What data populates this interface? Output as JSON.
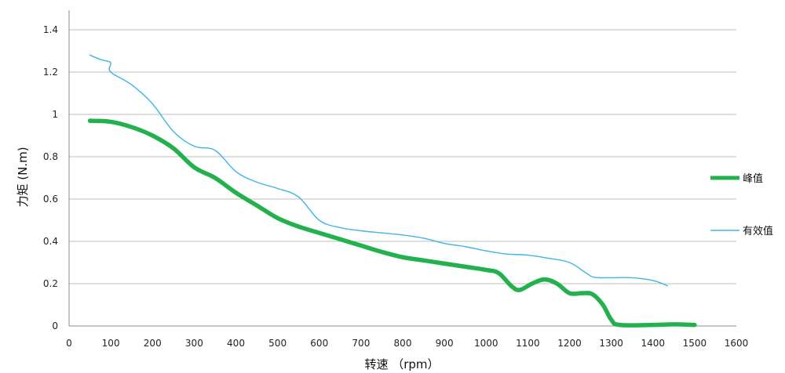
{
  "chart_data": {
    "type": "line",
    "title": "",
    "xlabel": "转速  （rpm）",
    "ylabel": "力矩 (N.m)",
    "xlim": [
      0,
      1600
    ],
    "ylim": [
      0,
      1.4
    ],
    "xticks": [
      "0",
      "100",
      "200",
      "300",
      "400",
      "500",
      "600",
      "700",
      "800",
      "900",
      "1000",
      "1100",
      "1200",
      "1300",
      "1400",
      "1500",
      "1600"
    ],
    "yticks": [
      "0",
      "0.2",
      "0.4",
      "0.6",
      "0.8",
      "1",
      "1.2",
      "1.4"
    ],
    "grid": true,
    "legend_position": "right",
    "series": [
      {
        "name": "峰值",
        "color": "#22b14c",
        "points": [
          [
            50,
            0.97
          ],
          [
            100,
            0.965
          ],
          [
            150,
            0.94
          ],
          [
            200,
            0.9
          ],
          [
            250,
            0.84
          ],
          [
            300,
            0.75
          ],
          [
            350,
            0.7
          ],
          [
            400,
            0.63
          ],
          [
            450,
            0.57
          ],
          [
            500,
            0.51
          ],
          [
            550,
            0.47
          ],
          [
            600,
            0.44
          ],
          [
            650,
            0.41
          ],
          [
            700,
            0.38
          ],
          [
            750,
            0.35
          ],
          [
            800,
            0.325
          ],
          [
            850,
            0.31
          ],
          [
            900,
            0.295
          ],
          [
            950,
            0.28
          ],
          [
            1000,
            0.265
          ],
          [
            1030,
            0.25
          ],
          [
            1060,
            0.19
          ],
          [
            1080,
            0.17
          ],
          [
            1110,
            0.2
          ],
          [
            1140,
            0.22
          ],
          [
            1170,
            0.2
          ],
          [
            1200,
            0.155
          ],
          [
            1230,
            0.155
          ],
          [
            1255,
            0.15
          ],
          [
            1280,
            0.1
          ],
          [
            1300,
            0.03
          ],
          [
            1320,
            0.005
          ],
          [
            1400,
            0.005
          ],
          [
            1450,
            0.008
          ],
          [
            1500,
            0.005
          ]
        ]
      },
      {
        "name": "有效值",
        "color": "#3db5e6",
        "points": [
          [
            50,
            1.28
          ],
          [
            75,
            1.26
          ],
          [
            95,
            1.25
          ],
          [
            100,
            1.24
          ],
          [
            100,
            1.2
          ],
          [
            150,
            1.14
          ],
          [
            200,
            1.05
          ],
          [
            250,
            0.92
          ],
          [
            300,
            0.85
          ],
          [
            350,
            0.83
          ],
          [
            400,
            0.73
          ],
          [
            450,
            0.68
          ],
          [
            500,
            0.65
          ],
          [
            550,
            0.61
          ],
          [
            600,
            0.5
          ],
          [
            650,
            0.465
          ],
          [
            700,
            0.45
          ],
          [
            750,
            0.44
          ],
          [
            800,
            0.43
          ],
          [
            850,
            0.415
          ],
          [
            900,
            0.39
          ],
          [
            950,
            0.375
          ],
          [
            1000,
            0.355
          ],
          [
            1050,
            0.34
          ],
          [
            1100,
            0.335
          ],
          [
            1150,
            0.32
          ],
          [
            1200,
            0.3
          ],
          [
            1240,
            0.25
          ],
          [
            1260,
            0.23
          ],
          [
            1300,
            0.228
          ],
          [
            1350,
            0.228
          ],
          [
            1400,
            0.215
          ],
          [
            1435,
            0.19
          ]
        ]
      }
    ]
  }
}
